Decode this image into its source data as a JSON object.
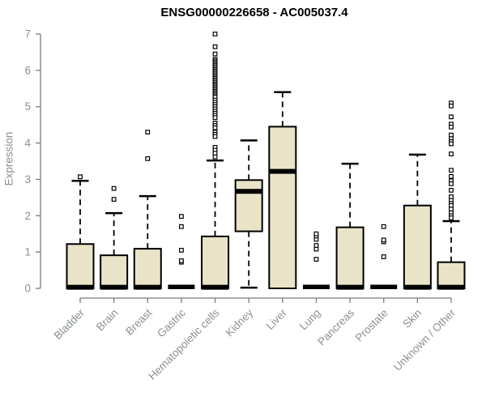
{
  "colors": {
    "box_fill": "#e9e4c8",
    "box_stroke": "#000000",
    "median": "#000000",
    "axis": "#7b7b7b",
    "tick_label": "#8a9095",
    "title": "#000000",
    "outlier_fill": "#ffffff"
  },
  "chart_data": {
    "type": "boxplot",
    "title": "ENSG00000226658 - AC005037.4",
    "xlabel": "",
    "ylabel": "Expression",
    "ylim": [
      0,
      7
    ],
    "yticks": [
      0,
      1,
      2,
      3,
      4,
      5,
      6,
      7
    ],
    "grid": false,
    "legend": "none",
    "categories": [
      "Bladder",
      "Brain",
      "Breast",
      "Gastric",
      "Hematopoietic cells",
      "Kidney",
      "Liver",
      "Lung",
      "Pancreas",
      "Prostate",
      "Skin",
      "Unknown / Other"
    ],
    "boxes": [
      {
        "category": "Bladder",
        "q1": 0,
        "median": 0.03,
        "q3": 1.22,
        "whisker_low": 0,
        "whisker_high": 2.96,
        "outliers": [
          3.07
        ]
      },
      {
        "category": "Brain",
        "q1": 0,
        "median": 0.03,
        "q3": 0.91,
        "whisker_low": 0,
        "whisker_high": 2.07,
        "outliers": [
          2.45,
          2.75
        ]
      },
      {
        "category": "Breast",
        "q1": 0,
        "median": 0.03,
        "q3": 1.09,
        "whisker_low": 0,
        "whisker_high": 2.54,
        "outliers": [
          3.57,
          4.3
        ]
      },
      {
        "category": "Gastric",
        "q1": 0,
        "median": 0,
        "q3": 0,
        "whisker_low": 0,
        "whisker_high": 0,
        "outliers": [
          0.72,
          0.76,
          1.05,
          1.7,
          1.98
        ]
      },
      {
        "category": "Hematopoietic cells",
        "q1": 0,
        "median": 0.03,
        "q3": 1.43,
        "whisker_low": 0,
        "whisker_high": 3.52,
        "outliers": [
          7.0,
          6.65,
          6.45,
          6.3,
          6.26,
          6.22,
          6.18,
          6.14,
          6.1,
          6.06,
          6.02,
          5.98,
          5.94,
          5.9,
          5.86,
          5.82,
          5.78,
          5.74,
          5.7,
          5.66,
          5.62,
          5.58,
          5.54,
          5.5,
          5.46,
          5.42,
          5.38,
          5.34,
          5.3,
          5.26,
          5.18,
          5.12,
          5.06,
          5.0,
          4.94,
          4.88,
          4.82,
          4.76,
          4.7,
          4.55,
          4.48,
          4.42,
          4.3,
          4.24,
          4.18,
          3.88,
          3.8,
          3.72,
          3.62
        ]
      },
      {
        "category": "Kidney",
        "q1": 1.57,
        "median": 2.67,
        "q3": 2.98,
        "whisker_low": 0.02,
        "whisker_high": 4.07,
        "outliers": []
      },
      {
        "category": "Liver",
        "q1": 0,
        "median": 3.22,
        "q3": 4.45,
        "whisker_low": 0,
        "whisker_high": 5.4,
        "outliers": []
      },
      {
        "category": "Lung",
        "q1": 0,
        "median": 0,
        "q3": 0,
        "whisker_low": 0,
        "whisker_high": 0,
        "outliers": [
          0.8,
          1.08,
          1.18,
          1.35,
          1.44,
          1.5
        ]
      },
      {
        "category": "Pancreas",
        "q1": 0,
        "median": 0.03,
        "q3": 1.68,
        "whisker_low": 0,
        "whisker_high": 3.43,
        "outliers": []
      },
      {
        "category": "Prostate",
        "q1": 0,
        "median": 0,
        "q3": 0,
        "whisker_low": 0,
        "whisker_high": 0,
        "outliers": [
          0.87,
          1.28,
          1.33,
          1.7
        ]
      },
      {
        "category": "Skin",
        "q1": 0,
        "median": 0.03,
        "q3": 2.28,
        "whisker_low": 0,
        "whisker_high": 3.68,
        "outliers": []
      },
      {
        "category": "Unknown / Other",
        "q1": 0,
        "median": 0.03,
        "q3": 0.72,
        "whisker_low": 0,
        "whisker_high": 1.85,
        "outliers": [
          5.1,
          5.02,
          4.72,
          4.52,
          4.44,
          4.22,
          4.12,
          4.04,
          3.98,
          3.7,
          3.25,
          3.08,
          2.96,
          2.88,
          2.7,
          2.52,
          2.42,
          2.34,
          2.28,
          2.18,
          2.08,
          2.0,
          1.94
        ]
      }
    ]
  }
}
